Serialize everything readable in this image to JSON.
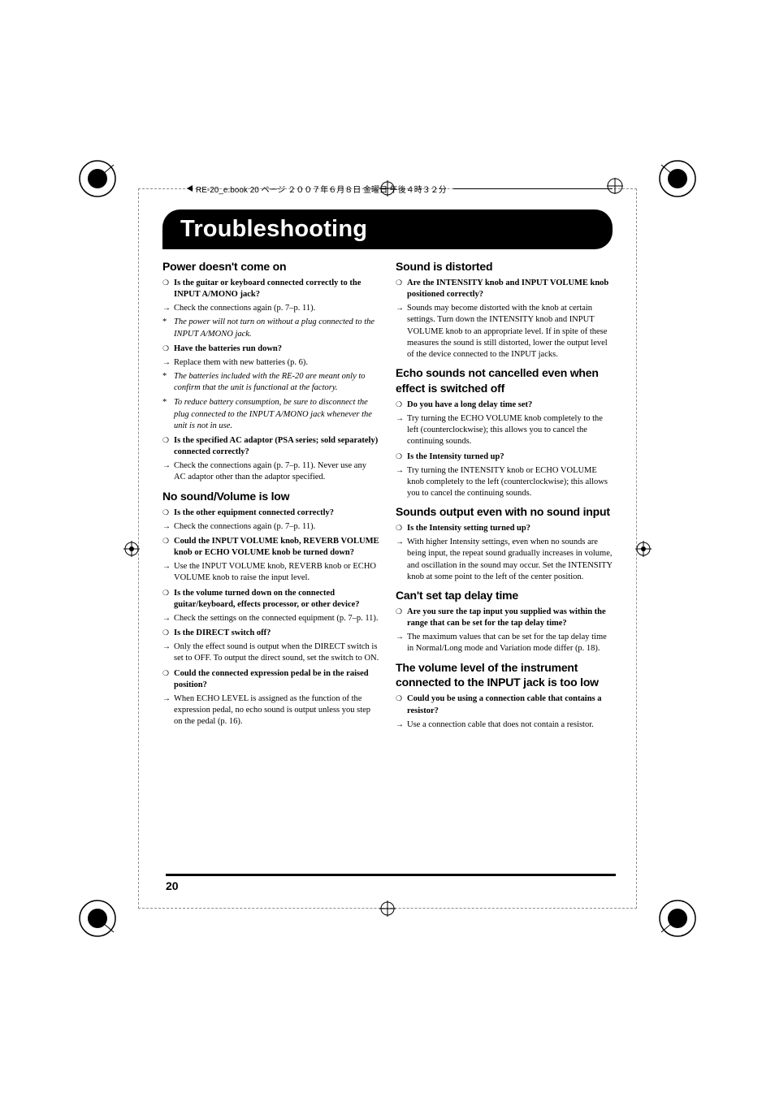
{
  "header": {
    "file_info": "RE-20_e.book 20 ページ ２００７年６月８日 金曜日 午後４時３２分"
  },
  "title": "Troubleshooting",
  "page_number": "20",
  "left_column": {
    "sections": [
      {
        "heading": "Power doesn't come on",
        "first": true,
        "items": [
          {
            "marker": "circle",
            "bold": true,
            "text": "Is the guitar or keyboard connected correctly to the INPUT A/MONO jack?"
          },
          {
            "marker": "arrow",
            "text": "Check the connections again (p. 7–p. 11)."
          },
          {
            "marker": "star",
            "italic": true,
            "text": "The power will not turn on without a plug connected to the INPUT A/MONO jack."
          },
          {
            "marker": "circle",
            "bold": true,
            "gap": true,
            "text": "Have the batteries run down?"
          },
          {
            "marker": "arrow",
            "text": "Replace them with new batteries (p. 6)."
          },
          {
            "marker": "star",
            "italic": true,
            "text": "The batteries included with the RE-20 are meant only to confirm that the unit is functional at the factory."
          },
          {
            "marker": "star",
            "italic": true,
            "gap": true,
            "text": "To reduce battery consumption, be sure to disconnect the plug connected to the INPUT A/MONO jack whenever the unit is not in use."
          },
          {
            "marker": "circle",
            "bold": true,
            "gap": true,
            "text": "Is the specified AC adaptor (PSA series; sold separately) connected correctly?"
          },
          {
            "marker": "arrow",
            "text": "Check the connections again (p. 7–p. 11). Never use any AC adaptor other than the adaptor specified."
          }
        ]
      },
      {
        "heading": "No sound/Volume is low",
        "items": [
          {
            "marker": "circle",
            "bold": true,
            "text": "Is the other equipment connected correctly?"
          },
          {
            "marker": "arrow",
            "text": "Check the connections again (p. 7–p. 11)."
          },
          {
            "marker": "circle",
            "bold": true,
            "gap": true,
            "text": "Could the INPUT VOLUME knob, REVERB VOLUME knob or ECHO VOLUME knob be turned down?"
          },
          {
            "marker": "arrow",
            "text": "Use the INPUT VOLUME knob, REVERB knob or ECHO VOLUME knob to raise the input level."
          },
          {
            "marker": "circle",
            "bold": true,
            "gap": true,
            "text": "Is the volume turned down on the connected guitar/keyboard, effects processor, or other device?"
          },
          {
            "marker": "arrow",
            "text": "Check the settings on the connected equipment (p. 7–p. 11)."
          },
          {
            "marker": "circle",
            "bold": true,
            "gap": true,
            "text": "Is the DIRECT switch off?"
          },
          {
            "marker": "arrow",
            "text": "Only the effect sound is output when the DIRECT switch is set to OFF. To output the direct sound, set the switch to ON."
          },
          {
            "marker": "circle",
            "bold": true,
            "gap": true,
            "text": "Could the connected expression pedal be in the raised position?"
          },
          {
            "marker": "arrow",
            "text": "When ECHO LEVEL is assigned as the function of the expression pedal, no echo sound is output unless you step on the pedal (p. 16)."
          }
        ]
      }
    ]
  },
  "right_column": {
    "sections": [
      {
        "heading": "Sound is distorted",
        "first": true,
        "items": [
          {
            "marker": "circle",
            "bold": true,
            "text": "Are the INTENSITY knob and INPUT VOLUME knob positioned correctly?"
          },
          {
            "marker": "arrow",
            "text": "Sounds may become distorted with the knob at certain settings. Turn down the INTENSITY knob and INPUT VOLUME knob to an appropriate level. If in spite of these measures the sound is still distorted, lower the output level of the device connected to the INPUT jacks."
          }
        ]
      },
      {
        "heading": "Echo sounds not cancelled even when effect is switched off",
        "items": [
          {
            "marker": "circle",
            "bold": true,
            "text": "Do you have a long delay time set?"
          },
          {
            "marker": "arrow",
            "text": "Try turning the ECHO VOLUME knob completely to the left (counterclockwise); this allows you to cancel the continuing sounds."
          },
          {
            "marker": "circle",
            "bold": true,
            "gap": true,
            "text": "Is the Intensity turned up?"
          },
          {
            "marker": "arrow",
            "text": "Try turning the INTENSITY knob or ECHO VOLUME knob completely to the left (counterclockwise); this allows you to cancel the continuing sounds."
          }
        ]
      },
      {
        "heading": "Sounds output even with no sound input",
        "items": [
          {
            "marker": "circle",
            "bold": true,
            "text": "Is the Intensity setting turned up?"
          },
          {
            "marker": "arrow",
            "text": "With higher Intensity settings, even when no sounds are being input, the repeat sound gradually increases in volume, and oscillation in the sound may occur.\nSet the INTENSITY knob at some point to the left of the center position."
          }
        ]
      },
      {
        "heading": "Can't set tap delay time",
        "items": [
          {
            "marker": "circle",
            "bold": true,
            "text": "Are you sure the tap input you supplied was within the range that can be set for the tap delay time?"
          },
          {
            "marker": "arrow",
            "text": "The maximum values that can be set for the tap delay time in Normal/Long mode and Variation mode differ (p. 18)."
          }
        ]
      },
      {
        "heading": "The volume level of the instrument connected to the INPUT jack is too low",
        "items": [
          {
            "marker": "circle",
            "bold": true,
            "text": "Could you be using a connection cable that contains a resistor?"
          },
          {
            "marker": "arrow",
            "text": "Use a connection cable that does not contain a resistor."
          }
        ]
      }
    ]
  },
  "colors": {
    "black": "#000000",
    "white": "#ffffff",
    "dash": "#8c8c8c"
  }
}
